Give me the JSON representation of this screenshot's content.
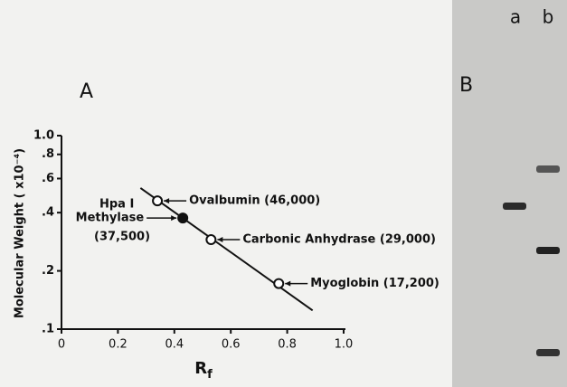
{
  "chart_data": {
    "type": "scatter",
    "panel_label": "A",
    "y_label": "Molecular Weight ( x10⁻⁴)",
    "x_label": "R",
    "x_label_sub": "f",
    "log_y": true,
    "xlim": [
      0,
      1
    ],
    "ylim": [
      0.1,
      1
    ],
    "xticks": [
      0,
      0.2,
      0.4,
      0.6,
      0.8,
      {
        "value": 1,
        "label": "1.0"
      }
    ],
    "yticks": [
      {
        "value": 1,
        "label": "1.0"
      },
      {
        "value": 0.8,
        "label": ".8"
      },
      {
        "value": 0.6,
        "label": ".6"
      },
      {
        "value": 0.4,
        "label": ".4"
      },
      {
        "value": 0.2,
        "label": ".2"
      },
      {
        "value": 0.1,
        "label": ".1"
      }
    ],
    "points": {
      "labels": [
        "Ovalbumin (46,000)",
        "Methylase",
        "Carbonic Anhydrase (29,000)",
        "Myoglobin (17,200)"
      ],
      "x": [
        0.34,
        0.43,
        0.53,
        0.77
      ],
      "y": [
        0.46,
        0.375,
        0.29,
        0.172
      ],
      "filled": [
        false,
        true,
        false,
        false
      ]
    },
    "annotations": [
      "Hpa I",
      "(37,500)"
    ],
    "fit_line": {
      "x": [
        0.28,
        0.89
      ],
      "y": [
        0.536,
        0.125
      ]
    }
  },
  "gel": {
    "panel_label": "B",
    "lanes": [
      "a",
      "b"
    ]
  }
}
